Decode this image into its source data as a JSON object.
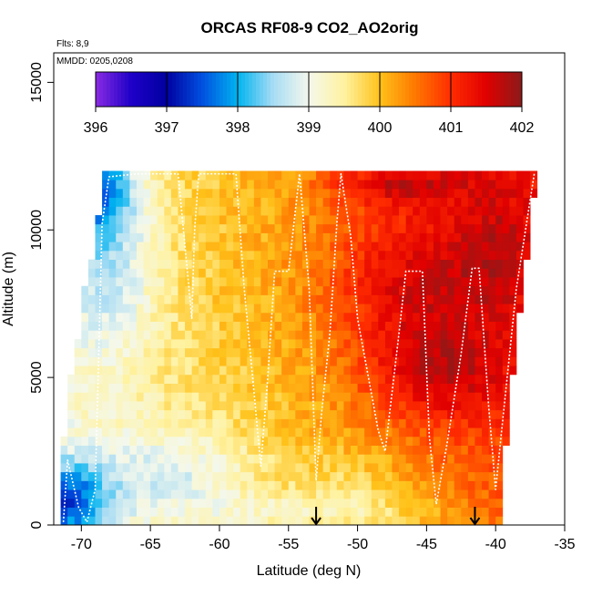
{
  "chart_data": {
    "type": "heatmap",
    "title": "ORCAS RF08-9 CO2_AO2orig",
    "xlabel": "Latitude (deg N)",
    "ylabel": "Altitude (m)",
    "xlim": [
      -72,
      -35
    ],
    "ylim": [
      0,
      16000
    ],
    "x_ticks": [
      -70,
      -65,
      -60,
      -55,
      -50,
      -45,
      -40,
      -35
    ],
    "x_tick_labels": [
      "-70",
      "-65",
      "-60",
      "-55",
      "-50",
      "-45",
      "-40",
      "-35"
    ],
    "y_ticks": [
      0,
      5000,
      10000,
      15000
    ],
    "y_tick_labels": [
      "0",
      "5000",
      "10000",
      "15000"
    ],
    "annotations": [
      "Flts: 8,9",
      "MMDD: 0205,0208"
    ],
    "colorbar": {
      "range": [
        396,
        402
      ],
      "ticks": [
        396,
        397,
        398,
        399,
        400,
        401,
        402
      ],
      "tick_labels": [
        "396",
        "397",
        "398",
        "399",
        "400",
        "401",
        "402"
      ],
      "stops": [
        {
          "v": 396.0,
          "c": "#8a2be2"
        },
        {
          "v": 396.5,
          "c": "#1e00c8"
        },
        {
          "v": 397.0,
          "c": "#0000a0"
        },
        {
          "v": 397.5,
          "c": "#0050e0"
        },
        {
          "v": 398.0,
          "c": "#00b4f0"
        },
        {
          "v": 398.5,
          "c": "#a8dcf4"
        },
        {
          "v": 399.0,
          "c": "#f4f8ec"
        },
        {
          "v": 399.5,
          "c": "#fff2a0"
        },
        {
          "v": 400.0,
          "c": "#ffc21a"
        },
        {
          "v": 400.5,
          "c": "#ff7800"
        },
        {
          "v": 401.0,
          "c": "#ff2c00"
        },
        {
          "v": 401.5,
          "c": "#e00000"
        },
        {
          "v": 402.0,
          "c": "#8b1a1a"
        }
      ]
    },
    "field_model": {
      "description": "approximate CO2 (ppm) field on curtain grid",
      "lat_range": [
        -71.5,
        -37.0
      ],
      "alt_range": [
        0,
        12000
      ],
      "lat_step": 0.5,
      "alt_step": 300
    },
    "markers": [
      {
        "lat": -53,
        "alt": 0,
        "type": "arrow"
      },
      {
        "lat": -41.5,
        "alt": 0,
        "type": "arrow"
      }
    ],
    "flight_track": [
      [
        -71.3,
        100
      ],
      [
        -71.0,
        2200
      ],
      [
        -70.2,
        600
      ],
      [
        -69.6,
        100
      ],
      [
        -69.0,
        1200
      ],
      [
        -68.5,
        10200
      ],
      [
        -68.0,
        11800
      ],
      [
        -66.0,
        11900
      ],
      [
        -63.0,
        11900
      ],
      [
        -62.5,
        9500
      ],
      [
        -62.0,
        7000
      ],
      [
        -61.8,
        10000
      ],
      [
        -61.5,
        11900
      ],
      [
        -59.0,
        11900
      ],
      [
        -58.8,
        11900
      ],
      [
        -58.2,
        8000
      ],
      [
        -57.5,
        4500
      ],
      [
        -57.0,
        2000
      ],
      [
        -56.5,
        5000
      ],
      [
        -56.0,
        8600
      ],
      [
        -55.0,
        8600
      ],
      [
        -54.2,
        11900
      ],
      [
        -53.5,
        8000
      ],
      [
        -53.0,
        1500
      ],
      [
        -52.6,
        3800
      ],
      [
        -52.0,
        6500
      ],
      [
        -51.5,
        10200
      ],
      [
        -51.2,
        11900
      ],
      [
        -50.5,
        9800
      ],
      [
        -50.0,
        7000
      ],
      [
        -48.5,
        3200
      ],
      [
        -48.0,
        2500
      ],
      [
        -47.0,
        6500
      ],
      [
        -46.5,
        8600
      ],
      [
        -45.3,
        8600
      ],
      [
        -44.8,
        3000
      ],
      [
        -44.3,
        700
      ],
      [
        -43.5,
        2800
      ],
      [
        -42.5,
        5800
      ],
      [
        -41.7,
        8700
      ],
      [
        -41.2,
        8700
      ],
      [
        -40.5,
        4000
      ],
      [
        -40.0,
        1200
      ],
      [
        -39.5,
        3500
      ],
      [
        -38.5,
        8000
      ],
      [
        -37.2,
        11900
      ]
    ]
  }
}
